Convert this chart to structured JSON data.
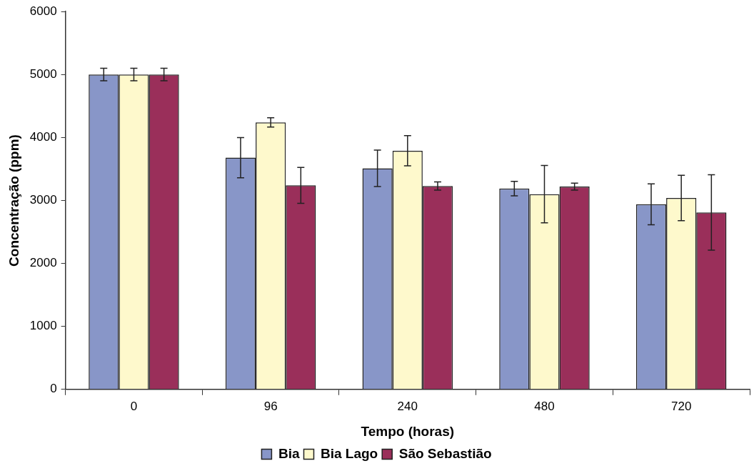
{
  "chart_data": {
    "type": "bar",
    "xlabel": "Tempo (horas)",
    "ylabel": "Concentração (ppm)",
    "categories": [
      "0",
      "96",
      "240",
      "480",
      "720"
    ],
    "series": [
      {
        "name": "Bia",
        "color": "#8896c8",
        "values": [
          5000,
          3680,
          3510,
          3190,
          2940
        ],
        "errors": [
          100,
          320,
          290,
          115,
          325
        ]
      },
      {
        "name": "Bia Lago",
        "color": "#fef9cc",
        "values": [
          5000,
          4240,
          3790,
          3100,
          3040
        ],
        "errors": [
          100,
          75,
          240,
          455,
          360
        ]
      },
      {
        "name": "São Sebastião",
        "color": "#9a2f5a",
        "values": [
          5000,
          3240,
          3230,
          3220,
          2810
        ],
        "errors": [
          100,
          285,
          65,
          55,
          600
        ]
      }
    ],
    "ylim": [
      0,
      6000
    ],
    "yticks": [
      0,
      1000,
      2000,
      3000,
      4000,
      5000,
      6000
    ],
    "grid": false,
    "legend": "bottom"
  }
}
